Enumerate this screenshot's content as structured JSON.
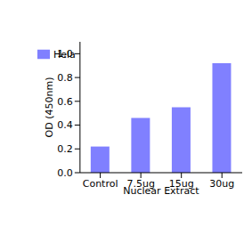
{
  "chart_data": {
    "type": "bar",
    "categories": [
      "Control",
      "7.5ug",
      "15ug",
      "30ug"
    ],
    "series": [
      {
        "name": "Hela",
        "color": "#8080ff",
        "values": [
          0.22,
          0.46,
          0.55,
          0.92
        ]
      }
    ],
    "xlabel": "Nuclear Extract",
    "ylabel": "OD (450nm)",
    "ylim": [
      0,
      1.1
    ],
    "yticks": [
      {
        "value": 0,
        "label": "0.0"
      },
      0.2,
      0.4,
      0.6,
      0.8,
      {
        "value": 1,
        "label": "1.0"
      }
    ],
    "grid": false,
    "legend": "upper left"
  }
}
